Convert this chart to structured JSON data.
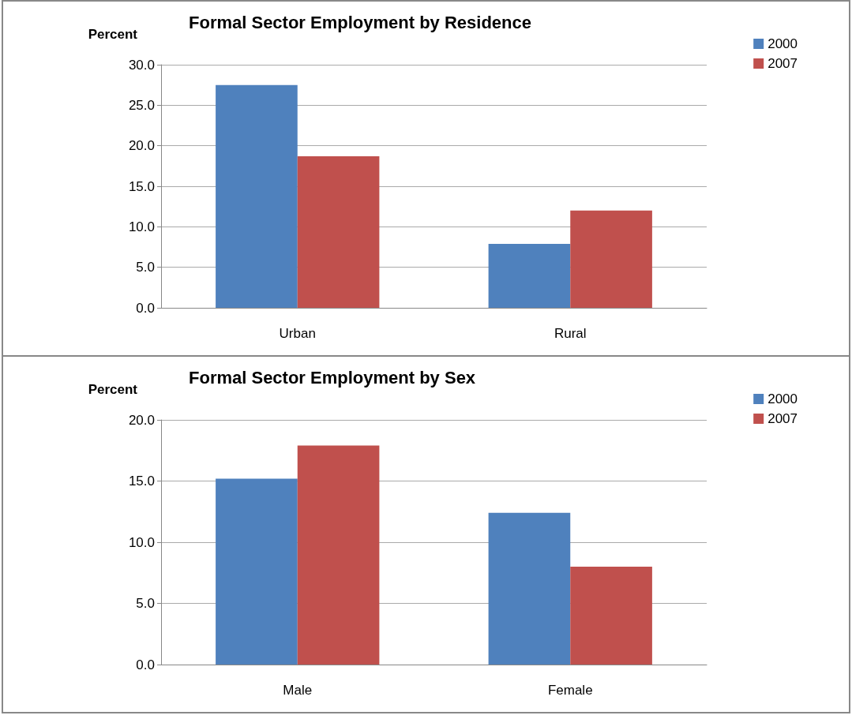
{
  "chart_data": [
    {
      "type": "bar",
      "title": "Formal Sector Employment by Residence",
      "ylabel": "Percent",
      "categories": [
        "Urban",
        "Rural"
      ],
      "series": [
        {
          "name": "2000",
          "color": "#4f81bd",
          "values": [
            27.5,
            7.9
          ]
        },
        {
          "name": "2007",
          "color": "#c0504d",
          "values": [
            18.7,
            12.0
          ]
        }
      ],
      "ylim": [
        0,
        30
      ],
      "yticks": [
        {
          "value": 0,
          "label": "0.0"
        },
        {
          "value": 5,
          "label": "5.0"
        },
        {
          "value": 10,
          "label": "10.0"
        },
        {
          "value": 15,
          "label": "15.0"
        },
        {
          "value": 20,
          "label": "20.0"
        },
        {
          "value": 25,
          "label": "25.0"
        },
        {
          "value": 30,
          "label": "30.0"
        }
      ],
      "grid": "y",
      "legend": "top right"
    },
    {
      "type": "bar",
      "title": "Formal Sector Employment by Sex",
      "ylabel": "Percent",
      "categories": [
        "Male",
        "Female"
      ],
      "series": [
        {
          "name": "2000",
          "color": "#4f81bd",
          "values": [
            15.2,
            12.4
          ]
        },
        {
          "name": "2007",
          "color": "#c0504d",
          "values": [
            17.9,
            8.0
          ]
        }
      ],
      "ylim": [
        0,
        20
      ],
      "yticks": [
        {
          "value": 0,
          "label": "0.0"
        },
        {
          "value": 5,
          "label": "5.0"
        },
        {
          "value": 10,
          "label": "10.0"
        },
        {
          "value": 15,
          "label": "15.0"
        },
        {
          "value": 20,
          "label": "20.0"
        }
      ],
      "grid": "y",
      "legend": "top right"
    }
  ]
}
